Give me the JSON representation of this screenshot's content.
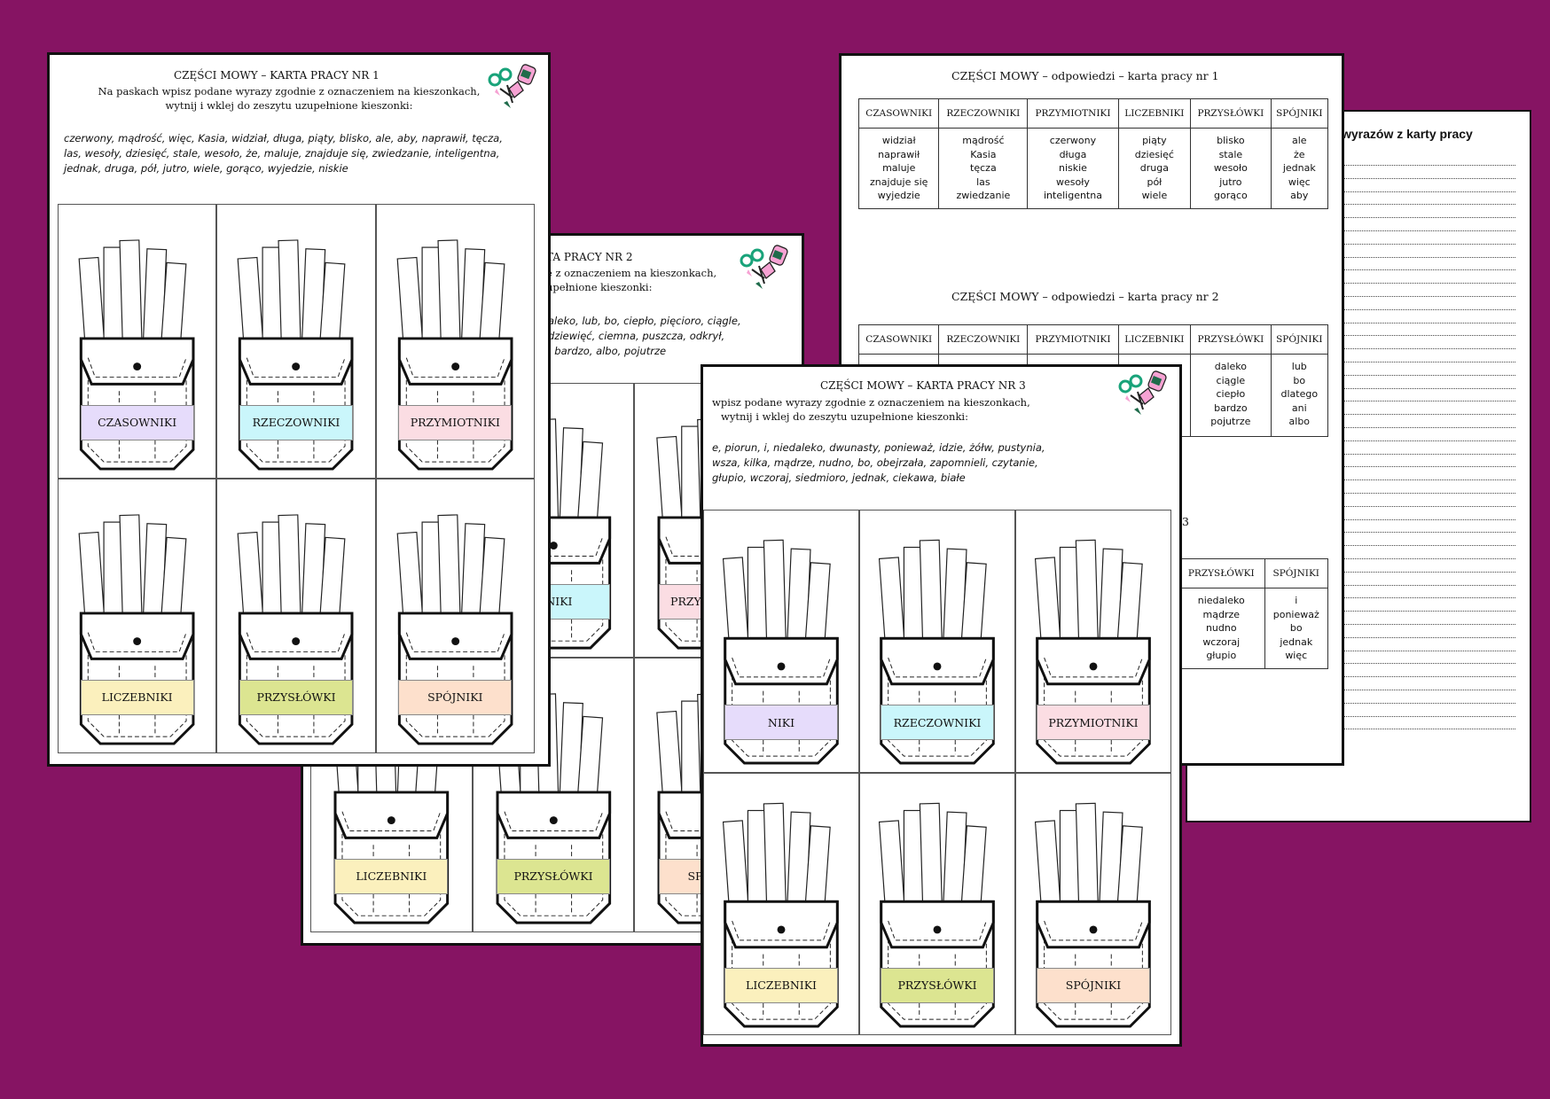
{
  "labels": [
    "CZASOWNIKI",
    "RZECZOWNIKI",
    "PRZYMIOTNIKI",
    "LICZEBNIKI",
    "PRZYSŁÓWKI",
    "SPÓJNIKI"
  ],
  "label_colors": [
    "#e6dcfb",
    "#caf6fb",
    "#fbdde3",
    "#fbf0bd",
    "#dce591",
    "#fde0cc"
  ],
  "sheet4": {
    "heading": "wyrazów z karty pracy"
  },
  "answers": {
    "title1": "CZĘŚCI MOWY – odpowiedzi – karta pracy nr 1",
    "title2": "CZĘŚCI MOWY  – odpowiedzi – karta pracy nr 2",
    "title3_fragment": "nr 3",
    "headers": [
      "CZASOWNIKI",
      "RZECZOWNIKI",
      "PRZYMIOTNIKI",
      "LICZEBNIKI",
      "PRZYSŁÓWKI",
      "SPÓJNIKI"
    ],
    "table1": [
      [
        "widział",
        "naprawił",
        "maluje",
        "znajduje się",
        "wyjedzie"
      ],
      [
        "mądrość",
        "Kasia",
        "tęcza",
        "las",
        "zwiedzanie"
      ],
      [
        "czerwony",
        "długa",
        "niskie",
        "wesoły",
        "inteligentna"
      ],
      [
        "piąty",
        "dziesięć",
        "druga",
        "pół",
        "wiele"
      ],
      [
        "blisko",
        "stale",
        "wesoło",
        "jutro",
        "gorąco"
      ],
      [
        "ale",
        "że",
        "jednak",
        "więc",
        "aby"
      ]
    ],
    "table2_visible": [
      [
        "daleko",
        "ciągle",
        "ciepło",
        "bardzo",
        "pojutrze"
      ],
      [
        "lub",
        "bo",
        "dlatego",
        "ani",
        "albo"
      ]
    ],
    "table3_headers": [
      "PRZYSŁÓWKI",
      "SPÓJNIKI"
    ],
    "table3_visible": [
      [
        "niedaleko",
        "mądrze",
        "nudno",
        "wczoraj",
        "głupio"
      ],
      [
        "i",
        "ponieważ",
        "bo",
        "jednak",
        "więc"
      ]
    ]
  },
  "sheet2": {
    "title": "TA PRACY NR 2",
    "instructions": [
      "e z oznaczeniem na kieszonkach,",
      "upełnione kieszonki:"
    ],
    "words": [
      "aleko, lub, bo, ciepło, pięcioro, ciągle,",
      "dziewięć, ciemna, puszcza, odkrył,",
      ", bardzo, albo, pojutrze"
    ],
    "visible_labels": [
      "WNIKI",
      "PRZYMIOTNIKI",
      "LICZEBNIKI",
      "PRZYSŁÓWKI",
      "SPÓJNIKI"
    ]
  },
  "sheet3": {
    "title": "CZĘŚCI MOWY  – KARTA PRACY NR 3",
    "instructions": [
      "wpisz podane wyrazy zgodnie z oznaczeniem na kieszonkach,",
      "wytnij i wklej do zeszytu uzupełnione kieszonki:"
    ],
    "words": [
      "e, piorun, i, niedaleko, dwunasty, ponieważ, idzie, żółw, pustynia,",
      "wsza, kilka, mądrze, nudno, bo, obejrzała, zapomnieli, czytanie,",
      "głupio, wczoraj, siedmioro, jednak, ciekawa, białe"
    ],
    "visible_labels": [
      "NIKI",
      "RZECZOWNIKI",
      "PRZYMIOTNIKI",
      "LICZEBNIKI",
      "PRZYSŁÓWKI",
      "SPÓJNIKI"
    ]
  },
  "sheet1": {
    "title": "CZĘŚCI MOWY  – KARTA PRACY NR 1",
    "instructions": [
      "Na paskach wpisz podane wyrazy zgodnie z oznaczeniem na kieszonkach,",
      "wytnij i wklej do zeszytu uzupełnione kieszonki:"
    ],
    "words": [
      "czerwony, mądrość, więc, Kasia, widział, długa, piąty, blisko, ale, aby, naprawił, tęcza,",
      "las, wesoły, dziesięć, stale, wesoło, że, maluje, znajduje się, zwiedzanie, inteligentna,",
      "jednak, druga, pół, jutro, wiele, gorąco, wyjedzie, niskie"
    ]
  }
}
